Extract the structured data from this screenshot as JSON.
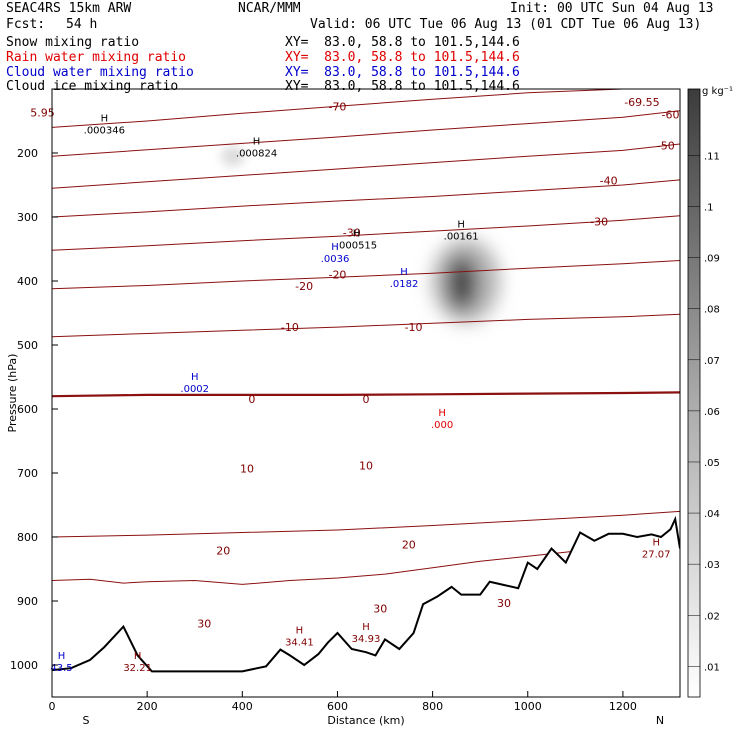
{
  "header": {
    "model": "SEAC4RS 15km ARW",
    "org": "NCAR/MMM",
    "init": "Init: 00 UTC Sun 04 Aug 13",
    "fcst_label": "Fcst:",
    "fcst_value": "54 h",
    "valid": "Valid: 06 UTC Tue 06 Aug 13 (01 CDT Tue 06 Aug 13)"
  },
  "legend": [
    {
      "label": "Snow mixing ratio",
      "xy": "XY=  83.0, 58.8 to 101.5,144.6",
      "color": "#000000"
    },
    {
      "label": "Rain water mixing ratio",
      "xy": "XY=  83.0, 58.8 to 101.5,144.6",
      "color": "#e00000"
    },
    {
      "label": "Cloud water mixing ratio",
      "xy": "XY=  83.0, 58.8 to 101.5,144.6",
      "color": "#0000cc"
    },
    {
      "label": "Cloud ice mixing ratio",
      "xy": "XY=  83.0, 58.8 to 101.5,144.6",
      "color": "#000000"
    }
  ],
  "colorbar": {
    "unit": "g kg⁻¹",
    "labels": [
      ".01",
      ".02",
      ".03",
      ".04",
      ".05",
      ".06",
      ".07",
      ".08",
      ".09",
      ".1",
      ".11"
    ]
  },
  "chart_data": {
    "type": "line",
    "xlabel": "Distance (km)",
    "ylabel": "Pressure (hPa)",
    "x_ticks": [
      0,
      200,
      400,
      600,
      800,
      1000,
      1200
    ],
    "y_ticks": [
      200,
      300,
      400,
      500,
      600,
      700,
      800,
      900,
      1000
    ],
    "x_end_labels": {
      "left": "S",
      "right": "N"
    },
    "xlim": [
      0,
      1320
    ],
    "ylim": [
      1050,
      100
    ],
    "temperature_contours": [
      {
        "value": 20,
        "x": [
          0,
          80,
          150,
          200,
          300,
          400,
          500,
          600,
          700,
          800,
          900,
          1000,
          1100,
          1200,
          1320
        ],
        "y": [
          868,
          866,
          872,
          870,
          868,
          874,
          868,
          864,
          858,
          848,
          838,
          830,
          822,
          815,
          808
        ]
      },
      {
        "value": 10,
        "x": [
          0,
          200,
          400,
          600,
          800,
          1000,
          1200,
          1320
        ],
        "y": [
          800,
          797,
          793,
          789,
          782,
          774,
          766,
          760
        ]
      },
      {
        "value": 0,
        "x": [
          0,
          200,
          400,
          600,
          800,
          1000,
          1200,
          1320
        ],
        "y": [
          580,
          578,
          578,
          578,
          577,
          576,
          575,
          574
        ]
      },
      {
        "value": -10,
        "x": [
          0,
          200,
          400,
          600,
          800,
          1000,
          1200,
          1320
        ],
        "y": [
          487,
          482,
          477,
          472,
          466,
          460,
          456,
          452
        ]
      },
      {
        "value": -20,
        "x": [
          0,
          200,
          400,
          600,
          800,
          1000,
          1200,
          1320
        ],
        "y": [
          412,
          407,
          400,
          394,
          388,
          380,
          373,
          368
        ]
      },
      {
        "value": -30,
        "x": [
          0,
          200,
          400,
          600,
          800,
          1000,
          1200,
          1320
        ],
        "y": [
          352,
          345,
          337,
          330,
          322,
          314,
          305,
          298
        ]
      },
      {
        "value": -40,
        "x": [
          0,
          200,
          400,
          600,
          800,
          1000,
          1200,
          1320
        ],
        "y": [
          300,
          292,
          283,
          275,
          268,
          259,
          250,
          242
        ]
      },
      {
        "value": -50,
        "x": [
          0,
          200,
          400,
          600,
          800,
          1000,
          1200,
          1320
        ],
        "y": [
          255,
          245,
          235,
          225,
          215,
          205,
          196,
          186
        ]
      },
      {
        "value": -60,
        "x": [
          0,
          200,
          400,
          600,
          800,
          1000,
          1200,
          1320
        ],
        "y": [
          205,
          195,
          185,
          175,
          164,
          154,
          144,
          134
        ]
      },
      {
        "value": -70,
        "x": [
          0,
          200,
          400,
          600,
          800,
          1000,
          1200,
          1320
        ],
        "y": [
          160,
          150,
          138,
          127,
          116,
          106,
          100,
          100
        ]
      }
    ],
    "terrain_pressure": {
      "x": [
        0,
        40,
        80,
        110,
        150,
        180,
        210,
        300,
        400,
        450,
        480,
        500,
        530,
        560,
        580,
        600,
        630,
        660,
        680,
        700,
        730,
        760,
        780,
        810,
        840,
        860,
        880,
        900,
        920,
        950,
        980,
        1000,
        1020,
        1050,
        1080,
        1110,
        1140,
        1170,
        1200,
        1230,
        1260,
        1280,
        1300,
        1310,
        1320
      ],
      "values": [
        1008,
        1005,
        992,
        972,
        940,
        985,
        1010,
        1010,
        1010,
        1002,
        976,
        985,
        1000,
        983,
        965,
        950,
        975,
        980,
        985,
        960,
        975,
        950,
        905,
        893,
        878,
        890,
        890,
        890,
        870,
        875,
        880,
        840,
        850,
        818,
        840,
        793,
        806,
        795,
        795,
        800,
        796,
        800,
        788,
        772,
        818
      ]
    },
    "maxima": [
      {
        "label": ".000346",
        "x": 110,
        "p": 160
      },
      {
        "label": ".000824",
        "x": 430,
        "p": 196
      },
      {
        "label": ".000515",
        "x": 640,
        "p": 340
      },
      {
        "label": ".00161",
        "x": 860,
        "p": 326
      },
      {
        "label": ".0036",
        "x": 595,
        "p": 361
      },
      {
        "label": ".0182",
        "x": 740,
        "p": 400
      },
      {
        "label": ".0002",
        "x": 300,
        "p": 564
      },
      {
        "label": ".000",
        "x": 820,
        "p": 620
      },
      {
        "label": "34.41",
        "x": 520,
        "p": 960
      },
      {
        "label": "34.93",
        "x": 660,
        "p": 955
      },
      {
        "label": "32.21",
        "x": 180,
        "p": 1000
      },
      {
        "label": "27.07",
        "x": 1270,
        "p": 823
      },
      {
        "label": "43.5",
        "x": 20,
        "p": 1000
      }
    ],
    "contour_labels": [
      {
        "label": "-70",
        "x": 600,
        "p": 127,
        "color": "#800000"
      },
      {
        "label": "-69.55",
        "x": 1240,
        "p": 120,
        "color": "#800000"
      },
      {
        "label": "-60",
        "x": 1300,
        "p": 140,
        "color": "#800000"
      },
      {
        "label": "-50",
        "x": 1290,
        "p": 188,
        "color": "#800000"
      },
      {
        "label": "-40",
        "x": 1170,
        "p": 243,
        "color": "#800000"
      },
      {
        "label": "-30",
        "x": 630,
        "p": 324,
        "color": "#800000"
      },
      {
        "label": "-30",
        "x": 1150,
        "p": 307,
        "color": "#800000"
      },
      {
        "label": "-20",
        "x": 600,
        "p": 390,
        "color": "#800000"
      },
      {
        "label": "-20",
        "x": 530,
        "p": 408,
        "color": "#800000"
      },
      {
        "label": "-10",
        "x": 500,
        "p": 472,
        "color": "#800000"
      },
      {
        "label": "-10",
        "x": 760,
        "p": 472,
        "color": "#800000"
      },
      {
        "label": "0",
        "x": 420,
        "p": 584,
        "color": "#800000"
      },
      {
        "label": "0",
        "x": 660,
        "p": 584,
        "color": "#800000"
      },
      {
        "label": "10",
        "x": 410,
        "p": 693,
        "color": "#800000"
      },
      {
        "label": "10",
        "x": 660,
        "p": 688,
        "color": "#800000"
      },
      {
        "label": "20",
        "x": 360,
        "p": 821,
        "color": "#800000"
      },
      {
        "label": "20",
        "x": 750,
        "p": 812,
        "color": "#800000"
      },
      {
        "label": "30",
        "x": 320,
        "p": 935,
        "color": "#800000"
      },
      {
        "label": "30",
        "x": 690,
        "p": 912,
        "color": "#800000"
      },
      {
        "label": "30",
        "x": 950,
        "p": 903,
        "color": "#800000"
      },
      {
        "label": "5.95",
        "x": -20,
        "p": 137,
        "color": "#800000"
      }
    ],
    "clusters": [
      {
        "name": "cloud-ice-maximum",
        "x": 870,
        "p": 400,
        "peak": 0.11
      },
      {
        "name": "cloud-ice-minor",
        "x": 380,
        "p": 205,
        "peak": 0.02
      }
    ]
  }
}
